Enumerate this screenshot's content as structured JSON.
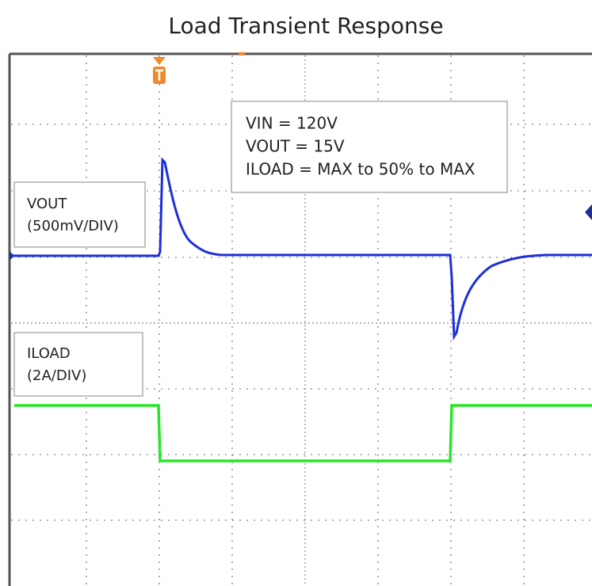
{
  "header": {
    "title": "Load Transient Response"
  },
  "annotation": {
    "lines": [
      "VIN = 120V",
      "VOUT = 15V",
      "ILOAD = MAX to 50% to MAX"
    ]
  },
  "channels": [
    {
      "lines": [
        "VOUT",
        "(500mV/DIV)"
      ]
    },
    {
      "lines": [
        "ILOAD",
        "(2A/DIV)"
      ]
    }
  ]
}
